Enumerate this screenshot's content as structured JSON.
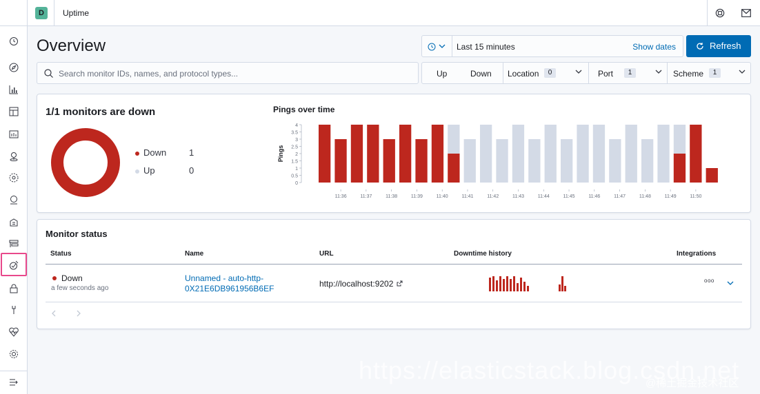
{
  "header": {
    "space_initial": "D",
    "app_title": "Uptime"
  },
  "page": {
    "title": "Overview"
  },
  "date_picker": {
    "range": "Last 15 minutes",
    "show_dates": "Show dates",
    "refresh": "Refresh"
  },
  "search": {
    "placeholder": "Search monitor IDs, names, and protocol types..."
  },
  "filters": {
    "up": "Up",
    "down": "Down",
    "location": {
      "label": "Location",
      "count": "0"
    },
    "port": {
      "label": "Port",
      "count": "1"
    },
    "scheme": {
      "label": "Scheme",
      "count": "1"
    }
  },
  "status_panel": {
    "title": "1/1 monitors are down",
    "legend": [
      {
        "label": "Down",
        "value": "1",
        "color": "#bd271e"
      },
      {
        "label": "Up",
        "value": "0",
        "color": "#d3dae6"
      }
    ]
  },
  "chart_data": {
    "type": "bar",
    "title": "Pings over time",
    "ylabel": "Pings",
    "xlabel": "",
    "ylim": [
      0,
      4
    ],
    "yticks": [
      "0",
      "0.5",
      "1",
      "1.5",
      "2",
      "2.5",
      "3",
      "3.5",
      "4"
    ],
    "xticks": [
      "11:36",
      "11:37",
      "11:38",
      "11:39",
      "11:40",
      "11:41",
      "11:42",
      "11:43",
      "11:44",
      "11:45",
      "11:46",
      "11:47",
      "11:48",
      "11:49",
      "11:50"
    ],
    "series": [
      {
        "name": "Down",
        "color": "#bd271e",
        "values": [
          4,
          3,
          4,
          4,
          3,
          4,
          3,
          4,
          2,
          0,
          0,
          0,
          0,
          0,
          0,
          0,
          0,
          0,
          0,
          0,
          0,
          0,
          2,
          4,
          1
        ]
      },
      {
        "name": "Up",
        "color": "#d3dae6",
        "values": [
          0,
          0,
          0,
          0,
          0,
          0,
          0,
          0,
          2,
          3,
          4,
          3,
          4,
          3,
          4,
          3,
          4,
          4,
          3,
          4,
          3,
          4,
          2,
          0,
          0
        ]
      }
    ]
  },
  "monitor_status": {
    "title": "Monitor status",
    "columns": [
      "Status",
      "Name",
      "URL",
      "Downtime history",
      "Integrations"
    ],
    "rows": [
      {
        "status": "Down",
        "status_time": "a few seconds ago",
        "name_line1": "Unnamed - auto-http-",
        "name_line2": "0X21E6DB961956B6EF",
        "url": "http://localhost:9202",
        "more": "ooo"
      }
    ]
  },
  "watermark": {
    "text": "https://elasticstack.blog.csdn.net",
    "text2": "@稀土掘金技术社区"
  }
}
